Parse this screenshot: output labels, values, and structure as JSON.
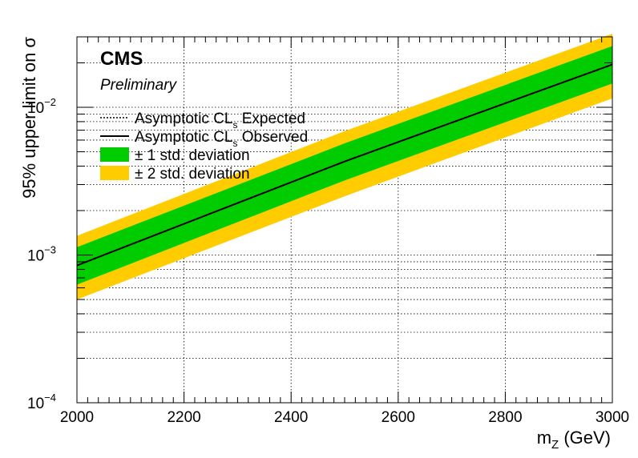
{
  "chart_data": {
    "type": "line",
    "title": "",
    "experiment_label": "CMS",
    "status_label": "Preliminary",
    "xlabel_main": "m",
    "xlabel_sub": "Z",
    "xlabel_unit": "(GeV)",
    "ylabel": "95% upper limit on  σ",
    "xlim": [
      2000,
      3000
    ],
    "ylim": [
      0.0001,
      0.03
    ],
    "yscale": "log",
    "grid": true,
    "x_ticks": [
      {
        "value": 2000,
        "label": "2000"
      },
      {
        "value": 2200,
        "label": "2200"
      },
      {
        "value": 2400,
        "label": "2400"
      },
      {
        "value": 2600,
        "label": "2600"
      },
      {
        "value": 2800,
        "label": "2800"
      },
      {
        "value": 3000,
        "label": "3000"
      }
    ],
    "y_ticks": [
      {
        "value": 0.0001,
        "base": "10",
        "exp": "−4"
      },
      {
        "value": 0.001,
        "base": "10",
        "exp": "−3"
      },
      {
        "value": 0.01,
        "base": "10",
        "exp": "−2"
      }
    ],
    "x": [
      2000,
      2500,
      3000
    ],
    "expected": [
      0.00085,
      0.0043,
      0.0195
    ],
    "observed": [
      0.00085,
      0.0043,
      0.0195
    ],
    "band_1sigma": {
      "low": [
        0.00063,
        0.0032,
        0.0145
      ],
      "high": [
        0.00113,
        0.0057,
        0.026
      ]
    },
    "band_2sigma": {
      "low": [
        0.0005,
        0.0025,
        0.0115
      ],
      "high": [
        0.00135,
        0.0069,
        0.0315
      ]
    },
    "legend": {
      "placement": "top-left",
      "entries": [
        {
          "kind": "dotted",
          "main": "Asymptotic CL",
          "sub": "s",
          "rest": " Expected"
        },
        {
          "kind": "solid",
          "main": "Asymptotic CL",
          "sub": "s",
          "rest": " Observed"
        },
        {
          "kind": "box",
          "color": "#00cc00",
          "main": "± 1 std. deviation"
        },
        {
          "kind": "box",
          "color": "#ffcc00",
          "main": "± 2 std. deviation"
        }
      ]
    },
    "colors": {
      "band_1sigma": "#00cc00",
      "band_2sigma": "#ffcc00",
      "line": "#000000",
      "grid": "#000000"
    }
  }
}
